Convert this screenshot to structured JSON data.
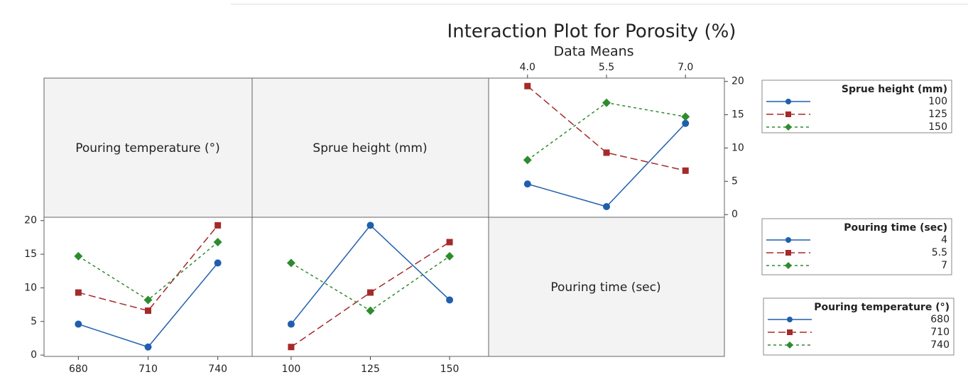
{
  "title": "Interaction Plot for Porosity (%)",
  "subtitle": "Data Means",
  "diagonal_labels": [
    "Pouring temperature (°)",
    "Sprue height (mm)",
    "Pouring time (sec)"
  ],
  "chart_data": [
    {
      "type": "line",
      "legend_title": "Sprue height (mm)",
      "categories": [
        "4.0",
        "5.5",
        "7.0"
      ],
      "series": [
        {
          "name": "100",
          "color": "#1f5fad",
          "marker": "circle",
          "dash": "solid",
          "values": [
            4.6,
            1.2,
            13.7
          ]
        },
        {
          "name": "125",
          "color": "#a52a2a",
          "marker": "square",
          "dash": "long",
          "values": [
            19.3,
            9.3,
            6.6
          ]
        },
        {
          "name": "150",
          "color": "#2e8b2e",
          "marker": "diamond",
          "dash": "short",
          "values": [
            8.2,
            16.8,
            14.7
          ]
        }
      ],
      "ylim": [
        -0.4,
        20.5
      ],
      "yticks": [
        0,
        5,
        10,
        15,
        20
      ]
    },
    {
      "type": "line",
      "legend_title": "Pouring time (sec)",
      "categories": [
        "680",
        "710",
        "740"
      ],
      "series": [
        {
          "name": "4",
          "color": "#1f5fad",
          "marker": "circle",
          "dash": "solid",
          "values": [
            4.6,
            1.2,
            13.7
          ]
        },
        {
          "name": "5.5",
          "color": "#a52a2a",
          "marker": "square",
          "dash": "long",
          "values": [
            9.3,
            6.6,
            19.3
          ]
        },
        {
          "name": "7",
          "color": "#2e8b2e",
          "marker": "diamond",
          "dash": "short",
          "values": [
            14.7,
            8.2,
            16.8
          ]
        }
      ],
      "ylim": [
        -0.2,
        20.5
      ],
      "yticks": [
        0,
        5,
        10,
        15,
        20
      ]
    },
    {
      "type": "line",
      "legend_title": "Pouring temperature (°)",
      "categories": [
        "100",
        "125",
        "150"
      ],
      "series": [
        {
          "name": "680",
          "color": "#1f5fad",
          "marker": "circle",
          "dash": "solid",
          "values": [
            4.6,
            19.3,
            8.2
          ]
        },
        {
          "name": "710",
          "color": "#a52a2a",
          "marker": "square",
          "dash": "long",
          "values": [
            1.2,
            9.3,
            16.8
          ]
        },
        {
          "name": "740",
          "color": "#2e8b2e",
          "marker": "diamond",
          "dash": "short",
          "values": [
            13.7,
            6.6,
            14.7
          ]
        }
      ],
      "ylim": [
        -0.2,
        20.5
      ]
    }
  ]
}
